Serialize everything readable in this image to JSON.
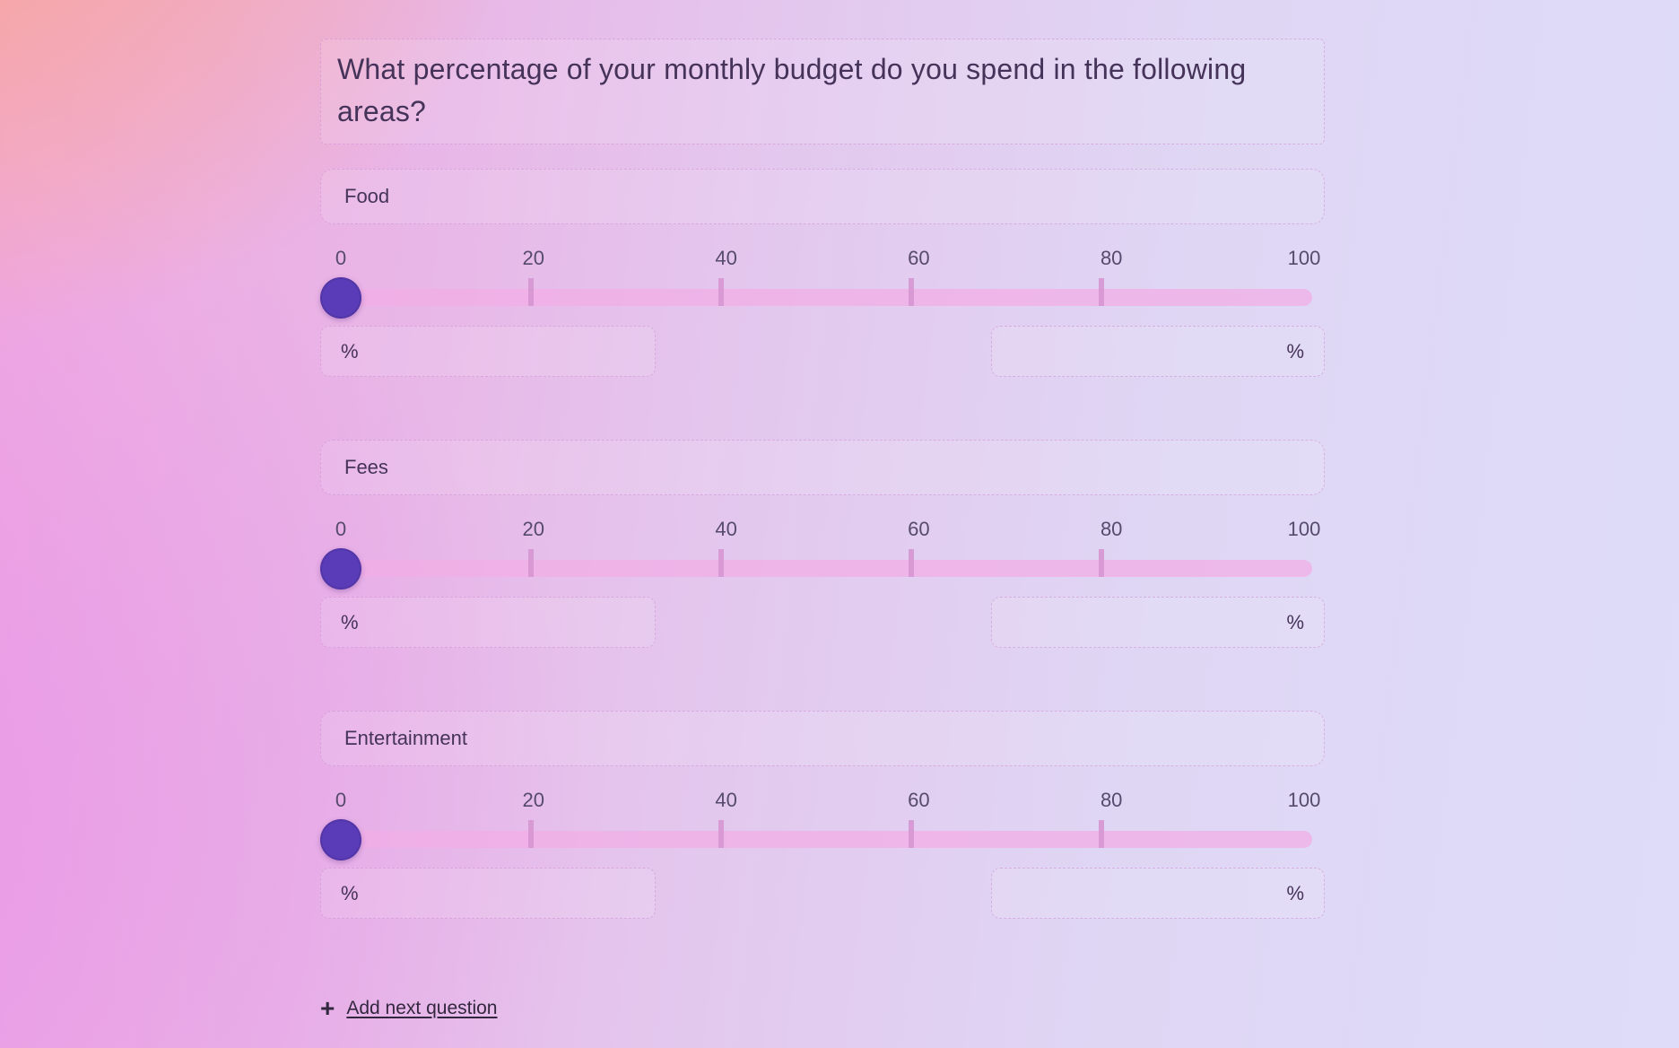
{
  "question": {
    "title": "What percentage of your monthly budget do you spend in the following areas?"
  },
  "scale": {
    "min": 0,
    "max": 100,
    "tick_labels": [
      "0",
      "20",
      "40",
      "60",
      "80",
      "100"
    ]
  },
  "rows": [
    {
      "label": "Food",
      "value": 0,
      "min_unit": "%",
      "max_unit": "%"
    },
    {
      "label": "Fees",
      "value": 0,
      "min_unit": "%",
      "max_unit": "%"
    },
    {
      "label": "Entertainment",
      "value": 0,
      "min_unit": "%",
      "max_unit": "%"
    }
  ],
  "footer": {
    "plus_icon": "+",
    "add_next_label": "Add next question"
  },
  "colors": {
    "thumb": "#5a3cb8",
    "track": "rgba(242,173,229,0.75)",
    "tickmark": "rgba(214,150,210,0.9)",
    "border_dashed": "rgba(205,140,210,0.55)",
    "text_primary": "#453359",
    "text_tick": "#564a6d",
    "text_link": "#32273f"
  }
}
